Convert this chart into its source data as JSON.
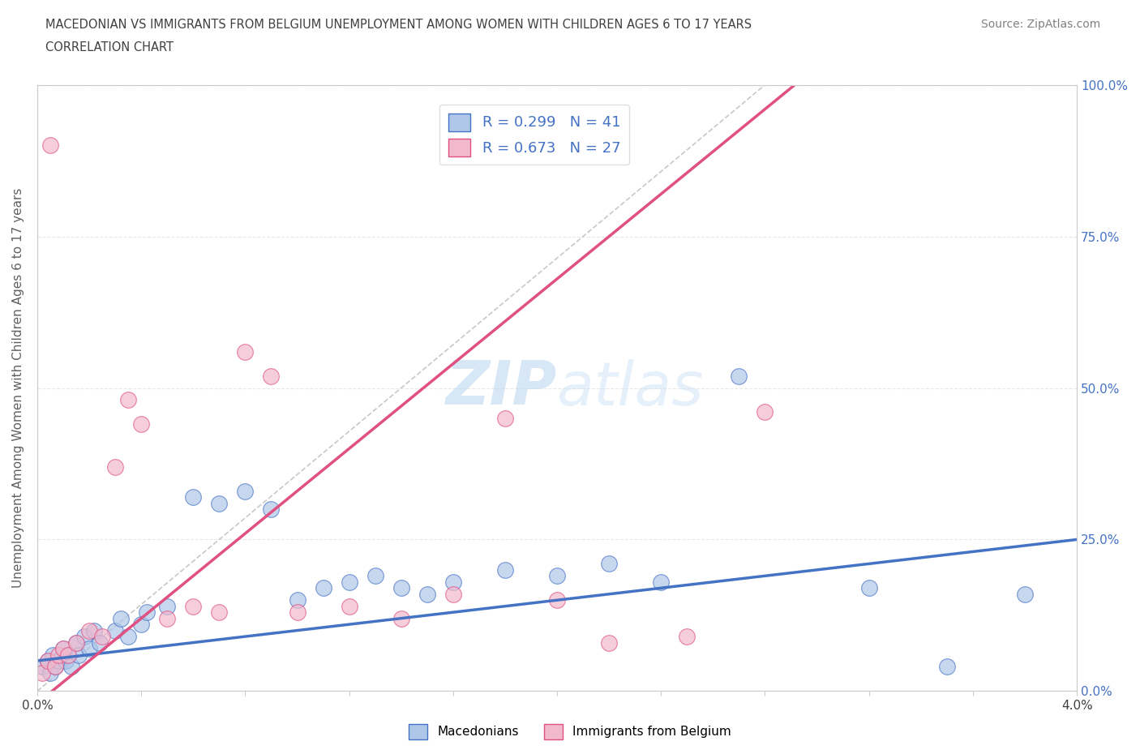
{
  "title_line1": "MACEDONIAN VS IMMIGRANTS FROM BELGIUM UNEMPLOYMENT AMONG WOMEN WITH CHILDREN AGES 6 TO 17 YEARS",
  "title_line2": "CORRELATION CHART",
  "source_text": "Source: ZipAtlas.com",
  "ylabel": "Unemployment Among Women with Children Ages 6 to 17 years",
  "xlim": [
    0.0,
    0.04
  ],
  "ylim": [
    0.0,
    1.0
  ],
  "xticks": [
    0.0,
    0.004,
    0.008,
    0.012,
    0.016,
    0.02,
    0.024,
    0.028,
    0.032,
    0.036,
    0.04
  ],
  "yticks": [
    0.0,
    0.25,
    0.5,
    0.75,
    1.0
  ],
  "ytick_labels": [
    "0.0%",
    "25.0%",
    "50.0%",
    "75.0%",
    "100.0%"
  ],
  "xtick_labels": [
    "0.0%",
    "",
    "",
    "",
    "",
    "",
    "",
    "",
    "",
    "",
    "4.0%"
  ],
  "macedonians_x": [
    0.0002,
    0.0004,
    0.0005,
    0.0006,
    0.0007,
    0.0008,
    0.001,
    0.0011,
    0.0012,
    0.0013,
    0.0015,
    0.0016,
    0.0018,
    0.002,
    0.0022,
    0.0024,
    0.003,
    0.0032,
    0.0035,
    0.004,
    0.0042,
    0.005,
    0.006,
    0.007,
    0.008,
    0.009,
    0.01,
    0.011,
    0.012,
    0.013,
    0.014,
    0.015,
    0.016,
    0.018,
    0.02,
    0.022,
    0.024,
    0.027,
    0.032,
    0.035,
    0.038
  ],
  "macedonians_y": [
    0.04,
    0.05,
    0.03,
    0.06,
    0.04,
    0.05,
    0.07,
    0.05,
    0.06,
    0.04,
    0.08,
    0.06,
    0.09,
    0.07,
    0.1,
    0.08,
    0.1,
    0.12,
    0.09,
    0.11,
    0.13,
    0.14,
    0.32,
    0.31,
    0.33,
    0.3,
    0.15,
    0.17,
    0.18,
    0.19,
    0.17,
    0.16,
    0.18,
    0.2,
    0.19,
    0.21,
    0.18,
    0.52,
    0.17,
    0.04,
    0.16
  ],
  "belgium_x": [
    0.0002,
    0.0004,
    0.0005,
    0.0007,
    0.0008,
    0.001,
    0.0012,
    0.0015,
    0.002,
    0.0025,
    0.003,
    0.0035,
    0.004,
    0.005,
    0.006,
    0.007,
    0.008,
    0.009,
    0.01,
    0.012,
    0.014,
    0.016,
    0.018,
    0.02,
    0.022,
    0.025,
    0.028
  ],
  "belgium_y": [
    0.03,
    0.05,
    0.9,
    0.04,
    0.06,
    0.07,
    0.06,
    0.08,
    0.1,
    0.09,
    0.37,
    0.48,
    0.44,
    0.12,
    0.14,
    0.13,
    0.56,
    0.52,
    0.13,
    0.14,
    0.12,
    0.16,
    0.45,
    0.15,
    0.08,
    0.09,
    0.46
  ],
  "mac_R": 0.299,
  "mac_N": 41,
  "bel_R": 0.673,
  "bel_N": 27,
  "mac_color": "#aec6e8",
  "bel_color": "#f2b8cc",
  "mac_line_color": "#4472c4",
  "bel_line_color": "#e05080",
  "ref_line_color": "#c8c8c8",
  "legend_text_color": "#4472c4",
  "title_color": "#404040",
  "source_color": "#808080",
  "background_color": "#ffffff",
  "watermark_color": "#d0e4f4",
  "grid_color": "#e8e8e8"
}
